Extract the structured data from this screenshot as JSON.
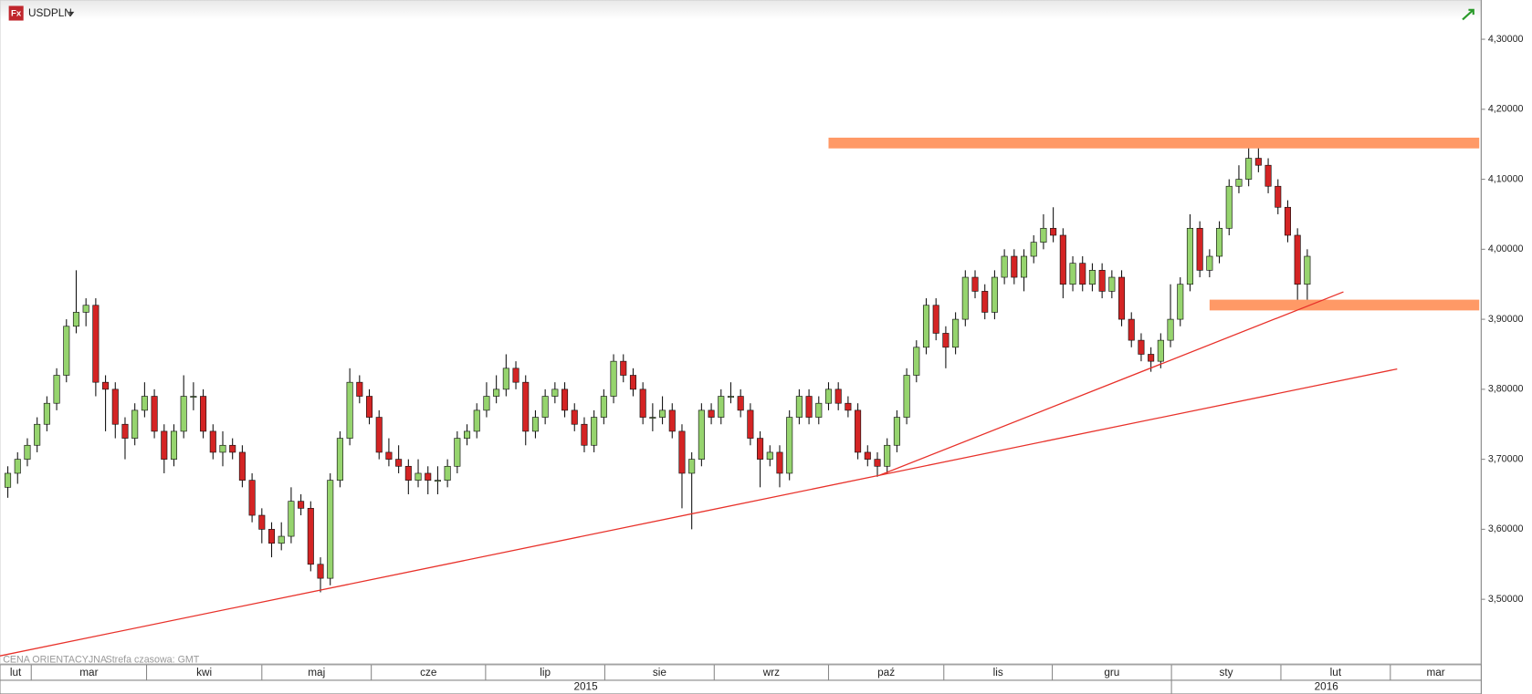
{
  "header": {
    "logo": "Fx",
    "symbol": "USDPLN"
  },
  "footer": {
    "price_note": "CENA ORIENTACYJNA",
    "timezone": "Strefa czasowa: GMT"
  },
  "chart_data": {
    "type": "candlestick",
    "up_color": "#96d46e",
    "down_color": "#d42424",
    "ylim": [
      3.408,
      4.356
    ],
    "yticks": [
      {
        "value": 3.5,
        "label": "3,50000"
      },
      {
        "value": 3.6,
        "label": "3,60000"
      },
      {
        "value": 3.7,
        "label": "3,70000"
      },
      {
        "value": 3.8,
        "label": "3,80000"
      },
      {
        "value": 3.9,
        "label": "3,90000"
      },
      {
        "value": 4.0,
        "label": "4,00000"
      },
      {
        "value": 4.1,
        "label": "4,10000"
      },
      {
        "value": 4.2,
        "label": "4,20000"
      },
      {
        "value": 4.3,
        "label": "4,30000"
      }
    ],
    "months": [
      "lut",
      "mar",
      "kwi",
      "maj",
      "cze",
      "lip",
      "sie",
      "wrz",
      "paź",
      "lis",
      "gru",
      "sty",
      "lut",
      "mar"
    ],
    "years": [
      "2015",
      "2016"
    ],
    "candles": [
      [
        3.66,
        3.69,
        3.645,
        3.68
      ],
      [
        3.68,
        3.71,
        3.665,
        3.7
      ],
      [
        3.7,
        3.73,
        3.69,
        3.72
      ],
      [
        3.72,
        3.76,
        3.71,
        3.75
      ],
      [
        3.75,
        3.79,
        3.74,
        3.78
      ],
      [
        3.78,
        3.83,
        3.77,
        3.82
      ],
      [
        3.82,
        3.9,
        3.81,
        3.89
      ],
      [
        3.89,
        3.97,
        3.88,
        3.91
      ],
      [
        3.91,
        3.93,
        3.89,
        3.92
      ],
      [
        3.92,
        3.93,
        3.79,
        3.81
      ],
      [
        3.81,
        3.82,
        3.74,
        3.8
      ],
      [
        3.8,
        3.81,
        3.73,
        3.75
      ],
      [
        3.75,
        3.76,
        3.7,
        3.73
      ],
      [
        3.73,
        3.78,
        3.72,
        3.77
      ],
      [
        3.77,
        3.81,
        3.76,
        3.79
      ],
      [
        3.79,
        3.8,
        3.73,
        3.74
      ],
      [
        3.74,
        3.75,
        3.68,
        3.7
      ],
      [
        3.7,
        3.75,
        3.69,
        3.74
      ],
      [
        3.74,
        3.82,
        3.73,
        3.79
      ],
      [
        3.79,
        3.81,
        3.77,
        3.79
      ],
      [
        3.79,
        3.8,
        3.73,
        3.74
      ],
      [
        3.74,
        3.75,
        3.7,
        3.71
      ],
      [
        3.71,
        3.74,
        3.69,
        3.72
      ],
      [
        3.72,
        3.73,
        3.7,
        3.71
      ],
      [
        3.71,
        3.72,
        3.66,
        3.67
      ],
      [
        3.67,
        3.68,
        3.61,
        3.62
      ],
      [
        3.62,
        3.63,
        3.58,
        3.6
      ],
      [
        3.6,
        3.61,
        3.56,
        3.58
      ],
      [
        3.58,
        3.61,
        3.57,
        3.59
      ],
      [
        3.59,
        3.66,
        3.58,
        3.64
      ],
      [
        3.64,
        3.65,
        3.62,
        3.63
      ],
      [
        3.63,
        3.64,
        3.54,
        3.55
      ],
      [
        3.55,
        3.56,
        3.51,
        3.53
      ],
      [
        3.53,
        3.68,
        3.52,
        3.67
      ],
      [
        3.67,
        3.74,
        3.66,
        3.73
      ],
      [
        3.73,
        3.83,
        3.72,
        3.81
      ],
      [
        3.81,
        3.82,
        3.78,
        3.79
      ],
      [
        3.79,
        3.8,
        3.75,
        3.76
      ],
      [
        3.76,
        3.77,
        3.7,
        3.71
      ],
      [
        3.71,
        3.73,
        3.69,
        3.7
      ],
      [
        3.7,
        3.72,
        3.68,
        3.69
      ],
      [
        3.69,
        3.7,
        3.65,
        3.67
      ],
      [
        3.67,
        3.7,
        3.66,
        3.68
      ],
      [
        3.68,
        3.69,
        3.65,
        3.67
      ],
      [
        3.67,
        3.69,
        3.65,
        3.67
      ],
      [
        3.67,
        3.7,
        3.66,
        3.69
      ],
      [
        3.69,
        3.74,
        3.68,
        3.73
      ],
      [
        3.73,
        3.75,
        3.72,
        3.74
      ],
      [
        3.74,
        3.78,
        3.73,
        3.77
      ],
      [
        3.77,
        3.81,
        3.76,
        3.79
      ],
      [
        3.79,
        3.82,
        3.78,
        3.8
      ],
      [
        3.8,
        3.85,
        3.79,
        3.83
      ],
      [
        3.83,
        3.84,
        3.8,
        3.81
      ],
      [
        3.81,
        3.82,
        3.72,
        3.74
      ],
      [
        3.74,
        3.77,
        3.73,
        3.76
      ],
      [
        3.76,
        3.8,
        3.75,
        3.79
      ],
      [
        3.79,
        3.81,
        3.78,
        3.8
      ],
      [
        3.8,
        3.81,
        3.76,
        3.77
      ],
      [
        3.77,
        3.78,
        3.74,
        3.75
      ],
      [
        3.75,
        3.76,
        3.71,
        3.72
      ],
      [
        3.72,
        3.77,
        3.71,
        3.76
      ],
      [
        3.76,
        3.8,
        3.75,
        3.79
      ],
      [
        3.79,
        3.85,
        3.78,
        3.84
      ],
      [
        3.84,
        3.85,
        3.81,
        3.82
      ],
      [
        3.82,
        3.83,
        3.79,
        3.8
      ],
      [
        3.8,
        3.81,
        3.75,
        3.76
      ],
      [
        3.76,
        3.78,
        3.74,
        3.76
      ],
      [
        3.76,
        3.79,
        3.75,
        3.77
      ],
      [
        3.77,
        3.78,
        3.73,
        3.74
      ],
      [
        3.74,
        3.75,
        3.63,
        3.68
      ],
      [
        3.68,
        3.71,
        3.6,
        3.7
      ],
      [
        3.7,
        3.78,
        3.69,
        3.77
      ],
      [
        3.77,
        3.78,
        3.75,
        3.76
      ],
      [
        3.76,
        3.8,
        3.75,
        3.79
      ],
      [
        3.79,
        3.81,
        3.78,
        3.79
      ],
      [
        3.79,
        3.8,
        3.76,
        3.77
      ],
      [
        3.77,
        3.78,
        3.72,
        3.73
      ],
      [
        3.73,
        3.74,
        3.66,
        3.7
      ],
      [
        3.7,
        3.72,
        3.69,
        3.71
      ],
      [
        3.71,
        3.72,
        3.66,
        3.68
      ],
      [
        3.68,
        3.77,
        3.67,
        3.76
      ],
      [
        3.76,
        3.8,
        3.75,
        3.79
      ],
      [
        3.79,
        3.8,
        3.75,
        3.76
      ],
      [
        3.76,
        3.79,
        3.75,
        3.78
      ],
      [
        3.78,
        3.81,
        3.77,
        3.8
      ],
      [
        3.8,
        3.81,
        3.77,
        3.78
      ],
      [
        3.78,
        3.79,
        3.76,
        3.77
      ],
      [
        3.77,
        3.78,
        3.7,
        3.71
      ],
      [
        3.71,
        3.72,
        3.69,
        3.7
      ],
      [
        3.7,
        3.71,
        3.675,
        3.69
      ],
      [
        3.69,
        3.73,
        3.68,
        3.72
      ],
      [
        3.72,
        3.77,
        3.71,
        3.76
      ],
      [
        3.76,
        3.83,
        3.75,
        3.82
      ],
      [
        3.82,
        3.87,
        3.81,
        3.86
      ],
      [
        3.86,
        3.93,
        3.85,
        3.92
      ],
      [
        3.92,
        3.93,
        3.87,
        3.88
      ],
      [
        3.88,
        3.89,
        3.83,
        3.86
      ],
      [
        3.86,
        3.91,
        3.85,
        3.9
      ],
      [
        3.9,
        3.97,
        3.89,
        3.96
      ],
      [
        3.96,
        3.97,
        3.93,
        3.94
      ],
      [
        3.94,
        3.95,
        3.9,
        3.91
      ],
      [
        3.91,
        3.97,
        3.9,
        3.96
      ],
      [
        3.96,
        4.0,
        3.95,
        3.99
      ],
      [
        3.99,
        4.0,
        3.95,
        3.96
      ],
      [
        3.96,
        4.0,
        3.94,
        3.99
      ],
      [
        3.99,
        4.02,
        3.98,
        4.01
      ],
      [
        4.01,
        4.05,
        4.0,
        4.03
      ],
      [
        4.03,
        4.06,
        4.01,
        4.02
      ],
      [
        4.02,
        4.03,
        3.93,
        3.95
      ],
      [
        3.95,
        3.99,
        3.94,
        3.98
      ],
      [
        3.98,
        3.99,
        3.94,
        3.95
      ],
      [
        3.95,
        3.98,
        3.94,
        3.97
      ],
      [
        3.97,
        3.98,
        3.93,
        3.94
      ],
      [
        3.94,
        3.97,
        3.93,
        3.96
      ],
      [
        3.96,
        3.97,
        3.89,
        3.9
      ],
      [
        3.9,
        3.91,
        3.86,
        3.87
      ],
      [
        3.87,
        3.88,
        3.84,
        3.85
      ],
      [
        3.85,
        3.86,
        3.825,
        3.84
      ],
      [
        3.84,
        3.88,
        3.83,
        3.87
      ],
      [
        3.87,
        3.95,
        3.86,
        3.9
      ],
      [
        3.9,
        3.96,
        3.89,
        3.95
      ],
      [
        3.95,
        4.05,
        3.94,
        4.03
      ],
      [
        4.03,
        4.04,
        3.96,
        3.97
      ],
      [
        3.97,
        4.0,
        3.96,
        3.99
      ],
      [
        3.99,
        4.04,
        3.98,
        4.03
      ],
      [
        4.03,
        4.1,
        4.02,
        4.09
      ],
      [
        4.09,
        4.12,
        4.08,
        4.1
      ],
      [
        4.1,
        4.15,
        4.09,
        4.13
      ],
      [
        4.13,
        4.155,
        4.11,
        4.12
      ],
      [
        4.12,
        4.13,
        4.08,
        4.09
      ],
      [
        4.09,
        4.1,
        4.05,
        4.06
      ],
      [
        4.06,
        4.07,
        4.01,
        4.02
      ],
      [
        4.02,
        4.03,
        3.92,
        3.95
      ],
      [
        3.95,
        4.0,
        3.915,
        3.99
      ]
    ]
  }
}
